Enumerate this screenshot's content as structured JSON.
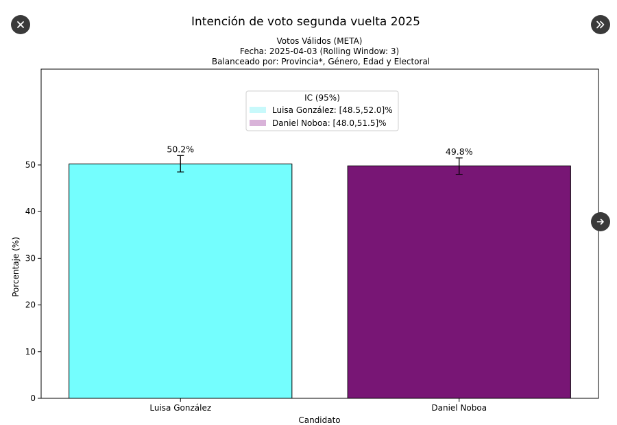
{
  "viewer": {
    "close_icon": "close-icon",
    "next_icon": "double-chevron-right-icon",
    "arrow_icon": "arrow-right-icon"
  },
  "chart_data": {
    "type": "bar",
    "title": "Intención de voto segunda vuelta 2025",
    "subtitle_lines": [
      "Votos Válidos (META)",
      "Fecha: 2025-04-03 (Rolling Window: 3)",
      "Balanceado por: Provincia*, Género, Edad y Electoral"
    ],
    "xlabel": "Candidato",
    "ylabel": "Porcentaje (%)",
    "categories": [
      "Luisa González",
      "Daniel Noboa"
    ],
    "values": [
      50.2,
      49.8
    ],
    "value_labels": [
      "50.2%",
      "49.8%"
    ],
    "ci_low": [
      48.5,
      48.0
    ],
    "ci_high": [
      52.0,
      51.5
    ],
    "colors": [
      "#74fefe",
      "#781675"
    ],
    "ylim": [
      0,
      70
    ],
    "yticks": [
      0,
      10,
      20,
      30,
      40,
      50
    ],
    "grid": false,
    "legend": {
      "placement": "upper-center",
      "title": "IC (95%)",
      "entries": [
        {
          "label": "Luisa González: [48.5,52.0]%",
          "color": "#c8f9fb"
        },
        {
          "label": "Daniel Noboa: [48.0,51.5]%",
          "color": "#d9b3d9"
        }
      ]
    }
  }
}
